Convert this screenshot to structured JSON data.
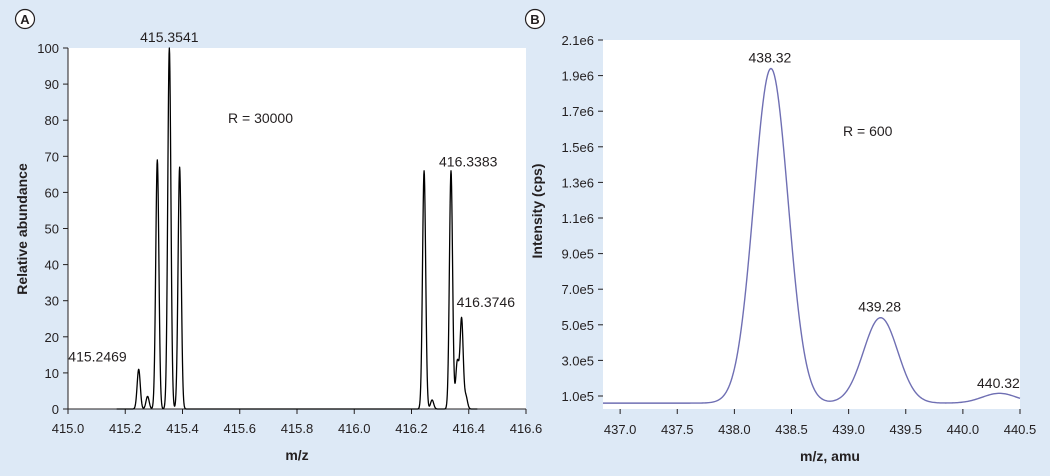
{
  "colors": {
    "background": "#dde9f6",
    "panel": "#ffffff",
    "trace_a": "#000000",
    "trace_b": "#6f6fb3"
  },
  "chart_data": [
    {
      "type": "line",
      "panel_label": "A",
      "xlabel": "m/z",
      "ylabel": "Relative abundance",
      "xlim": [
        415.0,
        416.6
      ],
      "ylim": [
        0,
        100
      ],
      "xticks": [
        "415.0",
        "415.2",
        "415.4",
        "415.6",
        "415.8",
        "416.0",
        "416.2",
        "416.4",
        "416.6"
      ],
      "yticks": [
        "0",
        "10",
        "20",
        "30",
        "40",
        "50",
        "60",
        "70",
        "80",
        "90",
        "100"
      ],
      "annotation": "R = 30000",
      "peak_labels": [
        {
          "text": "415.3541",
          "x": 415.354,
          "y": 100
        },
        {
          "text": "415.2469",
          "x": 415.247,
          "y": 11
        },
        {
          "text": "416.3383",
          "x": 416.338,
          "y": 66
        },
        {
          "text": "416.3746",
          "x": 416.375,
          "y": 25
        }
      ],
      "peaks": [
        {
          "x": 415.247,
          "y": 11
        },
        {
          "x": 415.278,
          "y": 3.5
        },
        {
          "x": 415.312,
          "y": 69
        },
        {
          "x": 415.354,
          "y": 100
        },
        {
          "x": 415.39,
          "y": 67
        },
        {
          "x": 416.244,
          "y": 66
        },
        {
          "x": 416.272,
          "y": 2.5
        },
        {
          "x": 416.338,
          "y": 66
        },
        {
          "x": 416.36,
          "y": 13
        },
        {
          "x": 416.375,
          "y": 25
        },
        {
          "x": 416.39,
          "y": 3.5
        }
      ]
    },
    {
      "type": "line",
      "panel_label": "B",
      "xlabel": "m/z, amu",
      "ylabel": "Intensity (cps)",
      "xlim": [
        436.85,
        440.5
      ],
      "ylim": [
        0,
        2100000
      ],
      "xticks": [
        "437.0",
        "437.5",
        "438.0",
        "438.5",
        "439.0",
        "439.5",
        "440.0",
        "440.5"
      ],
      "yticks": [
        "1.0e5",
        "3.0e5",
        "5.0e5",
        "7.0e5",
        "9.0e5",
        "1.1e6",
        "1.3e6",
        "1.5e6",
        "1.7e6",
        "1.9e6",
        "2.1e6"
      ],
      "annotation": "R = 600",
      "peak_labels": [
        {
          "text": "438.32",
          "x": 438.32,
          "y": 1940000
        },
        {
          "text": "439.28",
          "x": 439.28,
          "y": 540000
        },
        {
          "text": "440.32",
          "x": 440.32,
          "y": 110000
        }
      ],
      "baseline": 60000,
      "peaks": [
        {
          "x": 438.32,
          "height": 1880000,
          "sigma": 0.15
        },
        {
          "x": 439.28,
          "height": 480000,
          "sigma": 0.15
        },
        {
          "x": 440.32,
          "height": 55000,
          "sigma": 0.15
        }
      ]
    }
  ]
}
